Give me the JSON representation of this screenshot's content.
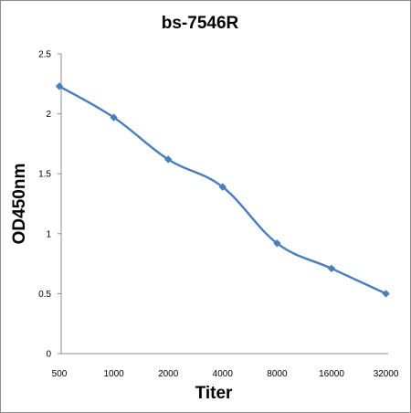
{
  "chart_data": {
    "type": "line",
    "title": "bs-7546R",
    "xlabel": "Titer",
    "ylabel": "OD450nm",
    "categories": [
      "500",
      "1000",
      "2000",
      "4000",
      "8000",
      "16000",
      "32000"
    ],
    "series": [
      {
        "values": [
          2.23,
          1.97,
          1.62,
          1.39,
          0.92,
          0.71,
          0.5
        ]
      }
    ],
    "ylim": [
      0,
      2.5
    ],
    "yticks": [
      "0",
      "0.5",
      "1",
      "1.5",
      "2",
      "2.5"
    ],
    "grid": false,
    "legend": "none",
    "line_color": "#4a7ebb",
    "marker": "diamond"
  }
}
